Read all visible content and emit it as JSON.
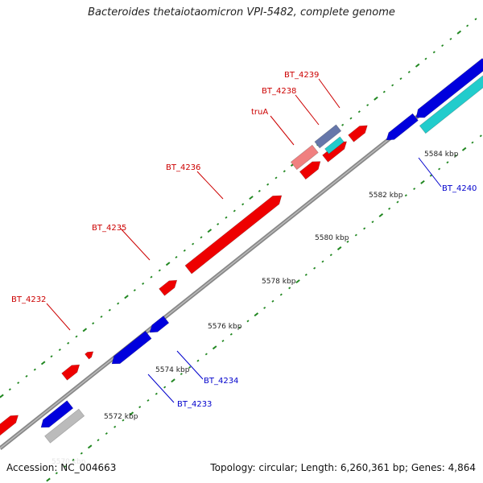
{
  "title": "Bacteroides thetaiotaomicron VPI-5482, complete genome",
  "footer": {
    "accession": "Accession: NC_004663",
    "stats": "Topology: circular; Length: 6,260,361 bp; Genes: 4,864"
  },
  "axis_labels": [
    {
      "text": "5570 kbp",
      "faded": true
    },
    {
      "text": "5572 kbp"
    },
    {
      "text": "5574 kbp"
    },
    {
      "text": "5576 kbp"
    },
    {
      "text": "5578 kbp"
    },
    {
      "text": "5580 kbp"
    },
    {
      "text": "5582 kbp"
    },
    {
      "text": "5584 kbp"
    }
  ],
  "genes": [
    {
      "label": "BT_4232",
      "color": "#cc0000"
    },
    {
      "label": "BT_4233",
      "color": "#0000cc"
    },
    {
      "label": "BT_4234",
      "color": "#0000cc"
    },
    {
      "label": "BT_4235",
      "color": "#cc0000"
    },
    {
      "label": "BT_4236",
      "color": "#cc0000"
    },
    {
      "label": "truA",
      "color": "#cc0000"
    },
    {
      "label": "BT_4238",
      "color": "#cc0000"
    },
    {
      "label": "BT_4239",
      "color": "#cc0000"
    },
    {
      "label": "BT_4240",
      "color": "#0000cc"
    }
  ],
  "colors": {
    "forward": "#ee0000",
    "reverse": "#0000dd",
    "pseudo_forward": "#f08080",
    "rna": "#22cccc",
    "neutral": "#bbbbbb",
    "tick": "#228822"
  }
}
